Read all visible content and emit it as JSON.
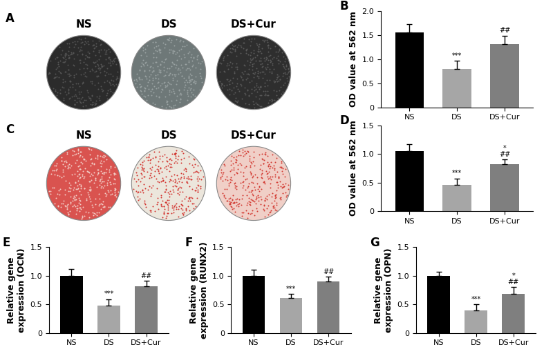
{
  "images": [
    {
      "panel": "A",
      "labels": [
        "NS",
        "DS",
        "DS+Cur"
      ]
    },
    {
      "panel": "C",
      "labels": [
        "NS",
        "DS",
        "DS+Cur"
      ]
    }
  ],
  "chart_data": [
    {
      "type": "bar",
      "panel": "B",
      "y_label": "OD value at 562 nm",
      "categories": [
        "NS",
        "DS",
        "DS+Cur"
      ],
      "values": [
        1.55,
        0.8,
        1.31
      ],
      "errors": [
        0.17,
        0.16,
        0.17
      ],
      "colors": [
        "#000000",
        "#a6a6a6",
        "#7f7f7f"
      ],
      "annotations": [
        [],
        [
          "***"
        ],
        [
          "##"
        ]
      ],
      "ylim": [
        0,
        2.0
      ],
      "yticks": [
        0,
        0.5,
        {
          "value": 1.0,
          "label": "1.0"
        },
        1.5,
        {
          "value": 2.0,
          "label": "2.0"
        }
      ]
    },
    {
      "type": "bar",
      "panel": "D",
      "y_label": "OD value at 562 nm",
      "categories": [
        "NS",
        "DS",
        "DS+Cur"
      ],
      "values": [
        1.05,
        0.46,
        0.82
      ],
      "errors": [
        0.12,
        0.11,
        0.08
      ],
      "colors": [
        "#000000",
        "#a6a6a6",
        "#7f7f7f"
      ],
      "annotations": [
        [],
        [
          "***"
        ],
        [
          "*",
          "##"
        ]
      ],
      "ylim": [
        0,
        1.5
      ],
      "yticks": [
        0,
        0.5,
        {
          "value": 1.0,
          "label": "1.0"
        },
        1.5
      ]
    },
    {
      "type": "bar",
      "panel": "E",
      "y_label": "Relative gene\nexpression (OCN)",
      "categories": [
        "NS",
        "DS",
        "DS+Cur"
      ],
      "values": [
        1.0,
        0.48,
        0.82
      ],
      "errors": [
        0.12,
        0.11,
        0.09
      ],
      "colors": [
        "#000000",
        "#a6a6a6",
        "#7f7f7f"
      ],
      "annotations": [
        [],
        [
          "***"
        ],
        [
          "##"
        ]
      ],
      "ylim": [
        0,
        1.5
      ],
      "yticks": [
        0,
        0.5,
        {
          "value": 1.0,
          "label": "1.0"
        },
        1.5
      ]
    },
    {
      "type": "bar",
      "panel": "F",
      "y_label": "Relative gene\nexpression (RUNX2)",
      "categories": [
        "NS",
        "DS",
        "DS+Cur"
      ],
      "values": [
        1.0,
        0.61,
        0.9
      ],
      "errors": [
        0.1,
        0.07,
        0.08
      ],
      "colors": [
        "#000000",
        "#a6a6a6",
        "#7f7f7f"
      ],
      "annotations": [
        [],
        [
          "***"
        ],
        [
          "##"
        ]
      ],
      "ylim": [
        0,
        1.5
      ],
      "yticks": [
        0,
        0.5,
        {
          "value": 1.0,
          "label": "1.0"
        },
        1.5
      ]
    },
    {
      "type": "bar",
      "panel": "G",
      "y_label": "Relative gene\nexpression (OPN)",
      "categories": [
        "NS",
        "DS",
        "DS+Cur"
      ],
      "values": [
        1.0,
        0.39,
        0.68
      ],
      "errors": [
        0.07,
        0.11,
        0.12
      ],
      "colors": [
        "#000000",
        "#a6a6a6",
        "#7f7f7f"
      ],
      "annotations": [
        [],
        [
          "***"
        ],
        [
          "*",
          "##"
        ]
      ],
      "ylim": [
        0,
        1.5
      ],
      "yticks": [
        0,
        0.5,
        {
          "value": 1.0,
          "label": "1.0"
        },
        1.5
      ]
    }
  ]
}
